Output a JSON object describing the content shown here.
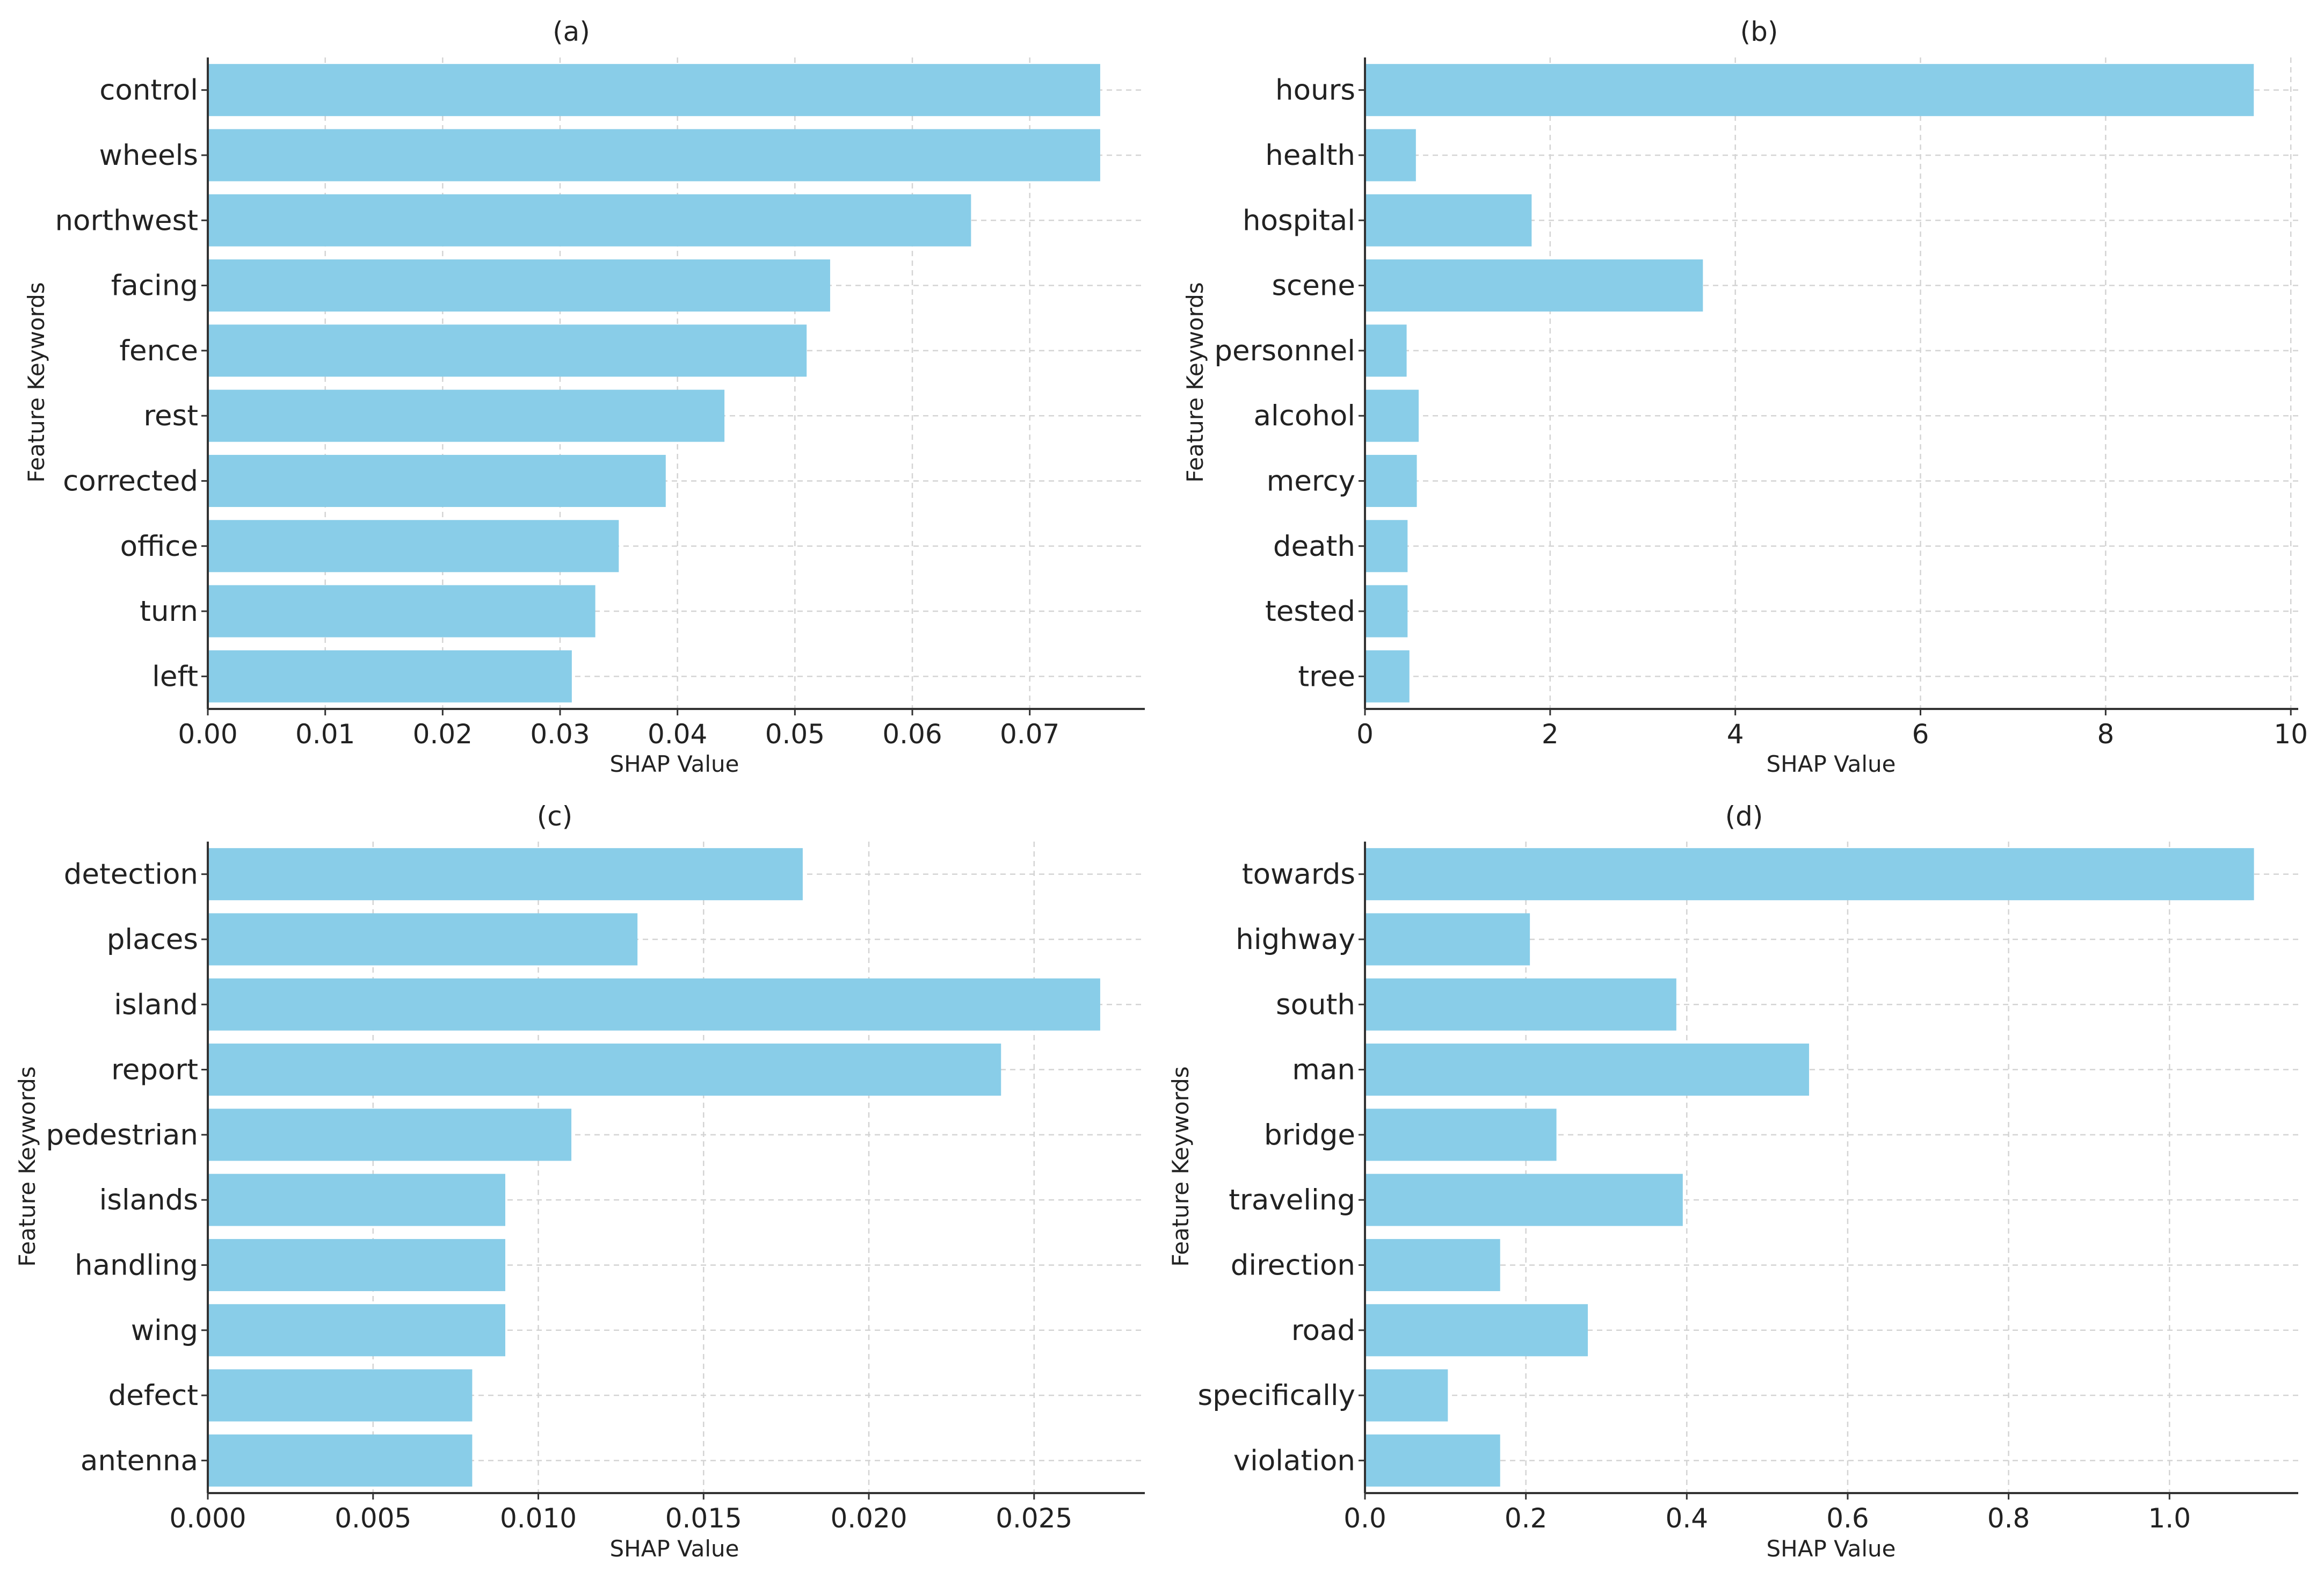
{
  "colors": {
    "bar": "#89cde8",
    "axis": "#333333",
    "grid": "#d4d4d4",
    "text": "#222222"
  },
  "chart_data": [
    {
      "type": "bar",
      "orientation": "horizontal",
      "title": "(a)",
      "xlabel": "SHAP Value",
      "ylabel": "Feature Keywords",
      "categories": [
        "control",
        "wheels",
        "northwest",
        "facing",
        "fence",
        "rest",
        "corrected",
        "office",
        "turn",
        "left"
      ],
      "values": [
        0.076,
        0.076,
        0.065,
        0.053,
        0.051,
        0.044,
        0.039,
        0.035,
        0.033,
        0.031
      ],
      "xlim": [
        0,
        0.0798
      ],
      "xticks": [
        0,
        0.01,
        0.02,
        0.03,
        0.04,
        0.05,
        0.06,
        0.07
      ],
      "xtick_labels": [
        "0.00",
        "0.01",
        "0.02",
        "0.03",
        "0.04",
        "0.05",
        "0.06",
        "0.07"
      ],
      "grid": true
    },
    {
      "type": "bar",
      "orientation": "horizontal",
      "title": "(b)",
      "xlabel": "SHAP Value",
      "ylabel": "Feature Keywords",
      "categories": [
        "hours",
        "health",
        "hospital",
        "scene",
        "personnel",
        "alcohol",
        "mercy",
        "death",
        "tested",
        "tree"
      ],
      "values": [
        9.6,
        0.55,
        1.8,
        3.65,
        0.45,
        0.58,
        0.56,
        0.46,
        0.46,
        0.48
      ],
      "xlim": [
        0,
        10.08
      ],
      "xticks": [
        0,
        2,
        4,
        6,
        8,
        10
      ],
      "xtick_labels": [
        "0",
        "2",
        "4",
        "6",
        "8",
        "10"
      ],
      "grid": true
    },
    {
      "type": "bar",
      "orientation": "horizontal",
      "title": "(c)",
      "xlabel": "SHAP Value",
      "ylabel": "Feature Keywords",
      "categories": [
        "detection",
        "places",
        "island",
        "report",
        "pedestrian",
        "islands",
        "handling",
        "wing",
        "defect",
        "antenna"
      ],
      "values": [
        0.018,
        0.013,
        0.027,
        0.024,
        0.011,
        0.009,
        0.009,
        0.009,
        0.008,
        0.008
      ],
      "xlim": [
        0,
        0.02835
      ],
      "xticks": [
        0,
        0.005,
        0.01,
        0.015,
        0.02,
        0.025
      ],
      "xtick_labels": [
        "0.000",
        "0.005",
        "0.010",
        "0.015",
        "0.020",
        "0.025"
      ],
      "grid": true
    },
    {
      "type": "bar",
      "orientation": "horizontal",
      "title": "(d)",
      "xlabel": "SHAP Value",
      "ylabel": "Feature Keywords",
      "categories": [
        "towards",
        "highway",
        "south",
        "man",
        "bridge",
        "traveling",
        "direction",
        "road",
        "specifically",
        "violation"
      ],
      "values": [
        1.105,
        0.205,
        0.387,
        0.552,
        0.238,
        0.395,
        0.168,
        0.277,
        0.103,
        0.168
      ],
      "xlim": [
        0,
        1.16
      ],
      "xticks": [
        0,
        0.2,
        0.4,
        0.6,
        0.8,
        1.0
      ],
      "xtick_labels": [
        "0.0",
        "0.2",
        "0.4",
        "0.6",
        "0.8",
        "1.0"
      ],
      "grid": true
    }
  ]
}
